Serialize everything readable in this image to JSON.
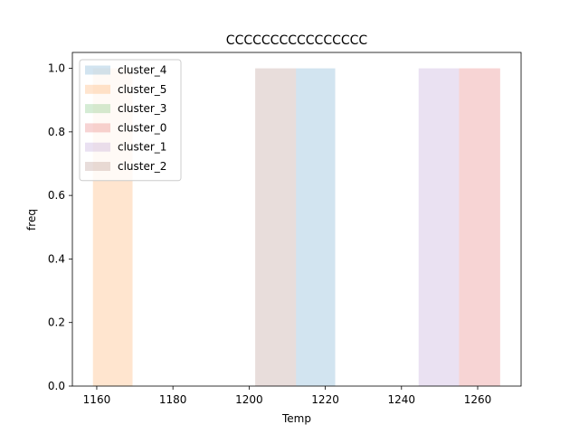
{
  "chart_data": {
    "type": "bar",
    "title": "CCCCCCCCCCCCCCCC",
    "xlabel": "Temp",
    "ylabel": "freq",
    "xlim": [
      1153.6,
      1271.4
    ],
    "ylim": [
      0,
      1.05
    ],
    "xticks": [
      1160,
      1180,
      1200,
      1220,
      1240,
      1260
    ],
    "yticks": [
      0.0,
      0.2,
      0.4,
      0.6,
      0.8,
      1.0
    ],
    "grid": false,
    "legend_position": "top-left",
    "series": [
      {
        "name": "cluster_4",
        "color": "#1f77b4",
        "bars": [
          {
            "x0": 1212.3,
            "x1": 1222.6,
            "value": 1.0
          }
        ]
      },
      {
        "name": "cluster_5",
        "color": "#ff7f0e",
        "bars": [
          {
            "x0": 1159.0,
            "x1": 1169.4,
            "value": 1.0
          }
        ]
      },
      {
        "name": "cluster_3",
        "color": "#2ca02c",
        "bars": []
      },
      {
        "name": "cluster_0",
        "color": "#d62728",
        "bars": [
          {
            "x0": 1255.1,
            "x1": 1265.9,
            "value": 1.0
          }
        ]
      },
      {
        "name": "cluster_1",
        "color": "#9467bd",
        "bars": [
          {
            "x0": 1244.5,
            "x1": 1255.1,
            "value": 1.0
          }
        ]
      },
      {
        "name": "cluster_2",
        "color": "#8c564b",
        "bars": [
          {
            "x0": 1201.6,
            "x1": 1212.3,
            "value": 1.0
          }
        ]
      }
    ]
  }
}
